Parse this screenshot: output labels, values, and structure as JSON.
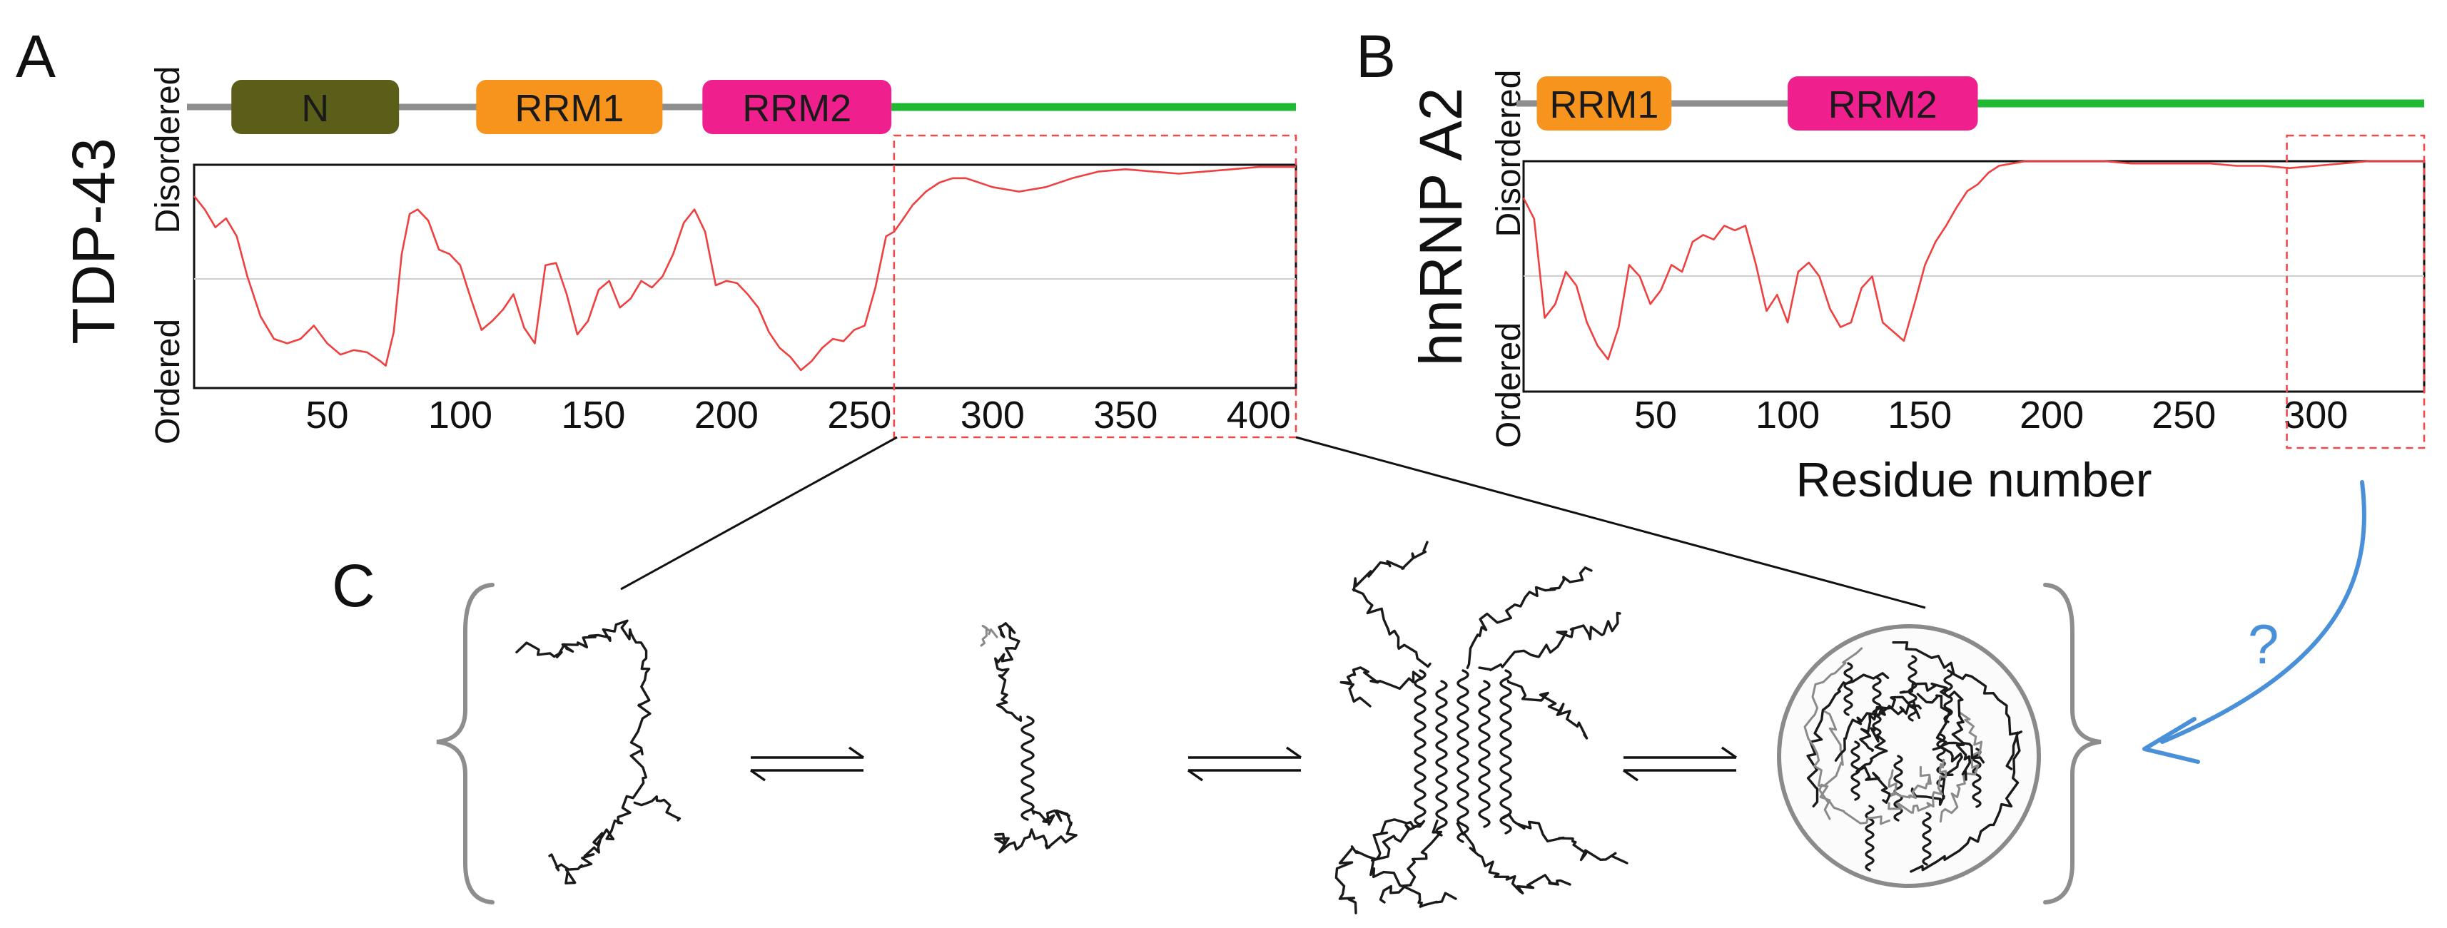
{
  "panels": {
    "a": "A",
    "b": "B",
    "c": "C"
  },
  "ensemble": {
    "question_mark": "?",
    "arrow_color": "#4a90d9"
  },
  "chart_data": [
    {
      "type": "line",
      "panel": "A",
      "protein": "TDP-43",
      "xlabel": "",
      "ylabel_top": "Disordered",
      "ylabel_bottom": "Ordered",
      "xlim": [
        0,
        414
      ],
      "ylim": [
        0,
        1
      ],
      "xticks": [
        50,
        100,
        150,
        200,
        250,
        300,
        350,
        400
      ],
      "grid": false,
      "color": "#ef4040",
      "selection_range": [
        263,
        414
      ],
      "domains": [
        {
          "label": "N",
          "start": 14,
          "end": 77,
          "color": "#5b5e19"
        },
        {
          "label": "RRM1",
          "start": 106,
          "end": 176,
          "color": "#f7941d"
        },
        {
          "label": "RRM2",
          "start": 191,
          "end": 262,
          "color": "#f01f8e"
        }
      ],
      "disordered_tail": {
        "start": 262,
        "end": 414,
        "color": "#1fb934"
      },
      "series": [
        {
          "x": [
            0,
            4,
            8,
            12,
            16,
            20,
            25,
            30,
            35,
            40,
            45,
            50,
            55,
            60,
            65,
            70,
            72,
            75,
            78,
            81,
            84,
            88,
            92,
            96,
            100,
            104,
            108,
            112,
            116,
            120,
            124,
            128,
            132,
            136,
            140,
            144,
            148,
            152,
            156,
            160,
            164,
            168,
            172,
            176,
            180,
            184,
            188,
            192,
            196,
            200,
            204,
            208,
            212,
            216,
            220,
            224,
            228,
            232,
            236,
            240,
            244,
            248,
            252,
            256,
            260,
            263,
            266,
            270,
            275,
            280,
            285,
            290,
            295,
            300,
            310,
            320,
            330,
            340,
            350,
            360,
            370,
            380,
            390,
            400,
            414
          ],
          "values": [
            0.86,
            0.8,
            0.72,
            0.76,
            0.68,
            0.5,
            0.32,
            0.22,
            0.2,
            0.22,
            0.28,
            0.2,
            0.15,
            0.17,
            0.16,
            0.12,
            0.1,
            0.25,
            0.6,
            0.78,
            0.8,
            0.75,
            0.62,
            0.6,
            0.55,
            0.4,
            0.26,
            0.3,
            0.35,
            0.42,
            0.27,
            0.2,
            0.55,
            0.56,
            0.42,
            0.24,
            0.3,
            0.44,
            0.48,
            0.36,
            0.4,
            0.48,
            0.45,
            0.5,
            0.6,
            0.74,
            0.8,
            0.7,
            0.46,
            0.48,
            0.47,
            0.42,
            0.36,
            0.25,
            0.18,
            0.14,
            0.08,
            0.12,
            0.18,
            0.22,
            0.21,
            0.26,
            0.28,
            0.45,
            0.68,
            0.7,
            0.75,
            0.82,
            0.88,
            0.92,
            0.94,
            0.94,
            0.92,
            0.9,
            0.88,
            0.9,
            0.94,
            0.97,
            0.98,
            0.97,
            0.96,
            0.97,
            0.98,
            0.99,
            0.99
          ]
        }
      ]
    },
    {
      "type": "line",
      "panel": "B",
      "protein": "hnRNP A2",
      "xlabel": "Residue number",
      "ylabel_top": "Disordered",
      "ylabel_bottom": "Ordered",
      "xlim": [
        0,
        341
      ],
      "ylim": [
        0,
        1
      ],
      "xticks": [
        50,
        100,
        150,
        200,
        250,
        300
      ],
      "grid": false,
      "color": "#ef4040",
      "selection_range": [
        289,
        341
      ],
      "domains": [
        {
          "label": "RRM1",
          "start": 5,
          "end": 56,
          "color": "#f7941d"
        },
        {
          "label": "RRM2",
          "start": 100,
          "end": 172,
          "color": "#f01f8e"
        }
      ],
      "disordered_tail": {
        "start": 172,
        "end": 341,
        "color": "#1fb934"
      },
      "series": [
        {
          "x": [
            0,
            4,
            8,
            12,
            16,
            20,
            24,
            28,
            32,
            36,
            40,
            44,
            48,
            52,
            56,
            60,
            64,
            68,
            72,
            76,
            80,
            84,
            88,
            92,
            96,
            100,
            104,
            108,
            112,
            116,
            120,
            124,
            128,
            132,
            136,
            140,
            144,
            148,
            152,
            156,
            160,
            164,
            168,
            172,
            176,
            180,
            185,
            190,
            195,
            200,
            210,
            220,
            230,
            240,
            250,
            260,
            270,
            280,
            290,
            300,
            310,
            320,
            330,
            341
          ],
          "values": [
            0.84,
            0.75,
            0.32,
            0.38,
            0.52,
            0.46,
            0.3,
            0.2,
            0.14,
            0.28,
            0.55,
            0.5,
            0.38,
            0.44,
            0.55,
            0.52,
            0.65,
            0.68,
            0.66,
            0.72,
            0.7,
            0.72,
            0.55,
            0.35,
            0.42,
            0.3,
            0.52,
            0.56,
            0.5,
            0.36,
            0.28,
            0.3,
            0.45,
            0.5,
            0.3,
            0.26,
            0.22,
            0.38,
            0.55,
            0.65,
            0.72,
            0.8,
            0.87,
            0.9,
            0.95,
            0.98,
            0.99,
            1.0,
            1.0,
            1.0,
            1.0,
            1.0,
            0.99,
            0.99,
            0.99,
            0.99,
            0.98,
            0.98,
            0.97,
            0.98,
            0.99,
            1.0,
            1.0,
            1.0
          ]
        }
      ]
    }
  ]
}
